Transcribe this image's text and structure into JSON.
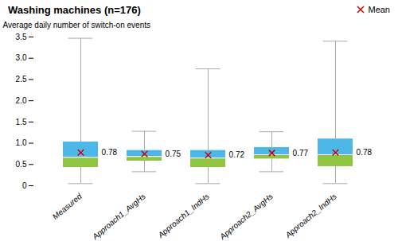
{
  "chart_data": {
    "type": "box",
    "title": "Washing machines (n=176)",
    "ylabel": "Average daily number of switch-on events",
    "categories": [
      "Measured",
      "Approach1_AvgHs",
      "Approach1_IndHs",
      "Approach2_AvgHs",
      "Approach2_IndHs"
    ],
    "boxes": [
      {
        "q1": 0.43,
        "median": 0.67,
        "q3": 1.03,
        "whislo": 0.05,
        "whishi": 3.47
      },
      {
        "q1": 0.58,
        "median": 0.69,
        "q3": 0.83,
        "whislo": 0.33,
        "whishi": 1.28
      },
      {
        "q1": 0.43,
        "median": 0.65,
        "q3": 0.83,
        "whislo": 0.05,
        "whishi": 2.75
      },
      {
        "q1": 0.63,
        "median": 0.73,
        "q3": 0.9,
        "whislo": 0.33,
        "whishi": 1.27
      },
      {
        "q1": 0.45,
        "median": 0.73,
        "q3": 1.1,
        "whislo": 0.05,
        "whishi": 3.4
      }
    ],
    "colors": [
      "#8ec641",
      "#4db8e8"
    ],
    "color": "#aaaaaa",
    "series": [
      {
        "name": "Mean",
        "type": "scatter",
        "marker": "x",
        "color": "#cc0000",
        "values": [
          0.78,
          0.75,
          0.72,
          0.77,
          0.78
        ]
      }
    ],
    "data_labels": true,
    "legend": "upper right",
    "grid": false,
    "ylim": [
      0,
      3.5
    ],
    "yticks": [
      0,
      0.5,
      {
        "value": 1,
        "label": "1.0"
      },
      1.5,
      {
        "value": 2,
        "label": "2.0"
      },
      2.5,
      {
        "value": 3,
        "label": "3.0"
      },
      3.5
    ]
  }
}
